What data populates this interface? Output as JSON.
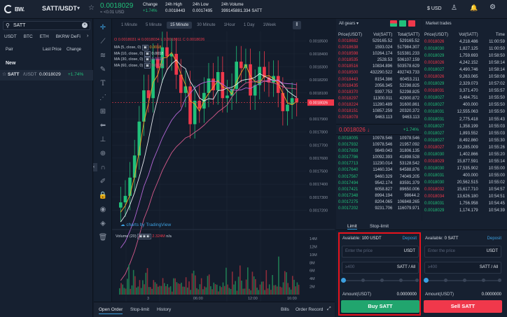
{
  "header": {
    "pair": "SATT/USDT",
    "last_price": "0.0018029",
    "last_price_sub": "≈ <0.01 USD",
    "change_label": "Change",
    "change_value": "+1.74%",
    "high_label": "24h High",
    "high_value": "0.0018443",
    "low_label": "24h Low",
    "low_value": "0.0017495",
    "volume_label": "24h Volume",
    "volume_value": "399145881.334 SATT",
    "currency": "$ USD"
  },
  "market_list": {
    "search_value": "SATT",
    "tabs": [
      "USDT",
      "BTC",
      "ETH",
      "BKRW",
      "DeFi"
    ],
    "col_pair": "Pair",
    "col_last": "Last Price",
    "col_change": "Change",
    "section": "New",
    "items": [
      {
        "base": "SATT",
        "quote": "/USDT",
        "price": "0.0018029",
        "change": "+1.74%"
      }
    ]
  },
  "chart": {
    "timeframes": [
      "1 Minute",
      "5 Minute",
      "15 Minute",
      "30 Minute",
      "1Hour",
      "1 Day",
      "1Week"
    ],
    "active_timeframe": "15 Minute",
    "ohlc_text": "O 0.0018031  H 0.0018034  L 0.0018011  C 0.0018026",
    "ma_lines": [
      "MA (5, close, 0)",
      "MA (10, close, 0)",
      "MA (30, close, 0)",
      "MA (60, close, 0)"
    ],
    "ma_values": [
      "0.0018",
      "0.0018",
      "0.0018",
      "0.0018"
    ],
    "price_ticks": [
      "0.0018500",
      "0.0018400",
      "0.0018300",
      "0.0018200",
      "0.0018100",
      "0.0018026",
      "0.0017900",
      "0.0017800",
      "0.0017700",
      "0.0017600",
      "0.0017500",
      "0.0017400",
      "0.0017300",
      "0.0017200"
    ],
    "current_price_tag": "0.0018026",
    "watermark": "charts by TradingView",
    "volume_label": "Volume (20)",
    "volume_value": "2.324M",
    "volume_na": "n/a",
    "volume_ticks": [
      "14M",
      "12M",
      "10M",
      "8M",
      "6M",
      "4M",
      "2M"
    ],
    "time_ticks": [
      "3",
      "06:00",
      "12:00",
      "16:00"
    ]
  },
  "chart_data": {
    "type": "candlestick",
    "candles_close": [
      0.001726,
      0.001731,
      0.001745,
      0.001762,
      0.001788,
      0.001812,
      0.001806,
      0.001836,
      0.001829,
      0.001845,
      0.001838,
      0.00184,
      0.001824,
      0.00181,
      0.001815,
      0.001786,
      0.001804,
      0.001798,
      0.00181,
      0.001821,
      0.001812,
      0.001826,
      0.001806,
      0.001808,
      0.001813,
      0.001834,
      0.001829,
      0.001832,
      0.001808,
      0.001816,
      0.00183,
      0.001822,
      0.001818,
      0.001823,
      0.00181,
      0.001796,
      0.001801,
      0.001806,
      0.001803
    ],
    "volume": [
      3.2,
      2.1,
      6.8,
      4.4,
      2.9,
      3.6,
      5.1,
      2.4,
      3.0,
      1.8,
      4.2,
      2.6,
      3.7,
      1.9,
      2.8,
      3.3,
      4.6,
      2.2,
      1.5,
      3.9,
      2.7,
      3.1,
      1.7,
      4.8,
      2.0,
      3.4,
      5.6,
      2.5,
      1.6,
      3.8,
      2.3,
      4.1,
      1.4,
      3.5,
      2.9,
      1.8,
      4.3,
      2.1,
      2.3
    ]
  },
  "orderbook": {
    "gear_label": "All gears",
    "col_price": "Price(USDT)",
    "col_vol": "Vol(SATT)",
    "col_total": "Total(SATT)",
    "asks": [
      [
        "0.0018682",
        "529165.52",
        "529165.52"
      ],
      [
        "0.0018638",
        "1593.024",
        "517984.307"
      ],
      [
        "0.0018598",
        "10264.174",
        "515381.233"
      ],
      [
        "0.0018535",
        "2528.53",
        "506107.159"
      ],
      [
        "0.0018516",
        "10834.896",
        "503578.629"
      ],
      [
        "0.0018500",
        "432290.522",
        "492743.733"
      ],
      [
        "0.0018443",
        "8154.386",
        "60453.211"
      ],
      [
        "0.0018435",
        "2056.345",
        "52298.825"
      ],
      [
        "0.0018370",
        "9397.753",
        "52298.825"
      ],
      [
        "0.0018297",
        "11300.011",
        "42900.872"
      ],
      [
        "0.0018224",
        "11280.489",
        "31600.861"
      ],
      [
        "0.0018151",
        "10857.259",
        "20320.372"
      ],
      [
        "0.0018078",
        "9463.113",
        "9463.113"
      ]
    ],
    "mid_price": "0.0018026 ↓",
    "mid_change": "+1.74%",
    "bids": [
      [
        "0.0018005",
        "10978.546",
        "10978.546"
      ],
      [
        "0.0017932",
        "10978.546",
        "21957.092"
      ],
      [
        "0.0017859",
        "9849.043",
        "31806.135"
      ],
      [
        "0.0017786",
        "10092.393",
        "41898.528"
      ],
      [
        "0.0017713",
        "11230.014",
        "53128.542"
      ],
      [
        "0.0017640",
        "11460.334",
        "64588.876"
      ],
      [
        "0.0017567",
        "9460.329",
        "74049.205"
      ],
      [
        "0.0017494",
        "9542.174",
        "83591.379"
      ],
      [
        "0.0017421",
        "6058.827",
        "89650.006"
      ],
      [
        "0.0017348",
        "8994.194",
        "98644.2"
      ],
      [
        "0.0017275",
        "8204.065",
        "106848.265"
      ],
      [
        "0.0017202",
        "9231.706",
        "116079.971"
      ]
    ]
  },
  "market_trades": {
    "title": "Market trades",
    "col_price": "Price(USDT)",
    "col_vol": "Vol(SATT)",
    "col_time": "Time",
    "rows": [
      [
        "0.0018026",
        "4,218.486",
        "11:00:59",
        "r"
      ],
      [
        "0.0018030",
        "1,827.125",
        "11:00:50",
        "g"
      ],
      [
        "0.0018029",
        "1,759.693",
        "10:58:50",
        "g"
      ],
      [
        "0.0018026",
        "4,242.152",
        "10:58:14",
        "r"
      ],
      [
        "0.0018027",
        "4,490.746",
        "10:58:14",
        "g"
      ],
      [
        "0.0018026",
        "9,263.065",
        "10:58:08",
        "r"
      ],
      [
        "0.0018029",
        "2,329.073",
        "10:57:02",
        "g"
      ],
      [
        "0.0018031",
        "3,371.470",
        "10:55:57",
        "r"
      ],
      [
        "0.0018027",
        "3,484.751",
        "10:55:50",
        "g"
      ],
      [
        "0.0018027",
        "400.000",
        "10:55:50",
        "g"
      ],
      [
        "0.0018031",
        "12,555.063",
        "10:55:50",
        "g"
      ],
      [
        "0.0018031",
        "2,775.418",
        "10:55:43",
        "g"
      ],
      [
        "0.0018027",
        "1,358.199",
        "10:55:03",
        "g"
      ],
      [
        "0.0018027",
        "1,893.552",
        "10:55:03",
        "g"
      ],
      [
        "0.0018027",
        "8,492.860",
        "10:55:30",
        "g"
      ],
      [
        "0.0018027",
        "19,285.009",
        "10:55:26",
        "r"
      ],
      [
        "0.0018030",
        "1,402.866",
        "10:55:20",
        "g"
      ],
      [
        "0.0018029",
        "15,877.591",
        "10:55:14",
        "r"
      ],
      [
        "0.0018030",
        "17,535.902",
        "10:55:00",
        "g"
      ],
      [
        "0.0018031",
        "400.000",
        "10:55:00",
        "g"
      ],
      [
        "0.0018030",
        "20,562.515",
        "10:55:02",
        "g"
      ],
      [
        "0.0018032",
        "15,617.710",
        "10:54:57",
        "r"
      ],
      [
        "0.0018034",
        "13,626.180",
        "10:54:51",
        "r"
      ],
      [
        "0.0018031",
        "1,756.958",
        "10:54:45",
        "g"
      ],
      [
        "0.0018029",
        "1,174.179",
        "10:54:39",
        "g"
      ]
    ]
  },
  "trade_form": {
    "tab_limit": "Limit",
    "tab_stop": "Stop-limit",
    "buy_available_label": "Available:",
    "buy_available_value": "100 USDT",
    "deposit": "Deposit",
    "sell_available_label": "Available:",
    "sell_available_value": "0 SATT",
    "price_placeholder": "Enter the price",
    "price_unit": "USDT",
    "amount_placeholder": "≥400",
    "amount_unit": "SATT / All",
    "total_label": "Amount(USDT)",
    "total_value": "0.0000000",
    "buy_button": "Buy SATT",
    "sell_button": "Sell SATT",
    "buy_color": "#21a56e",
    "sell_color": "#f0384b",
    "highlight_color": "#e8131d"
  },
  "bottom_tabs": {
    "open_order": "Open Order",
    "stop_limit": "Stop-limit",
    "history": "History",
    "bills": "Bills",
    "order_record": "Order Record"
  }
}
